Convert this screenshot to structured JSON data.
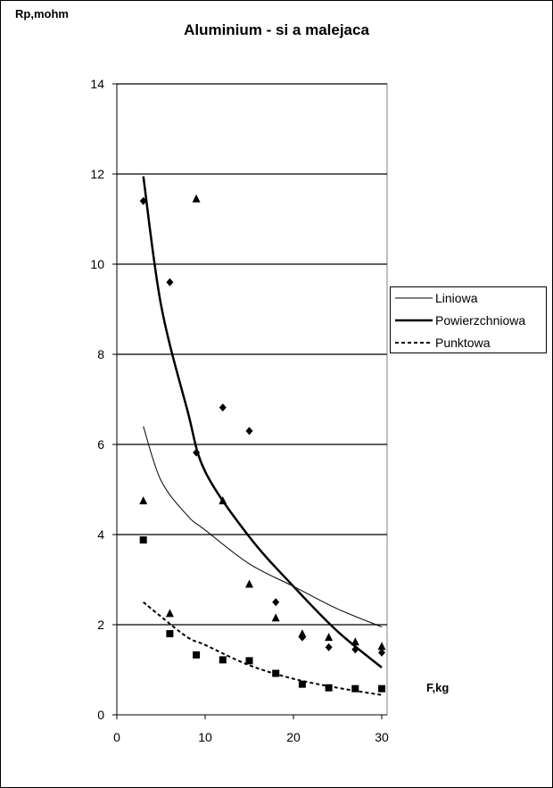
{
  "chart_data": {
    "type": "scatter",
    "title": "Aluminium - si a malejaca",
    "xlabel": "F,kg",
    "ylabel": "Rp,mohm",
    "xlim": [
      0,
      30
    ],
    "ylim": [
      0,
      14
    ],
    "x_ticks": [
      "0",
      "10",
      "20",
      "30"
    ],
    "y_ticks": [
      "0",
      "2",
      "4",
      "6",
      "8",
      "10",
      "12",
      "14"
    ],
    "grid": "horizontal",
    "legend_position": "right",
    "legend": [
      {
        "label": "Liniowa",
        "style": "thin-solid"
      },
      {
        "label": "Powierzchniowa",
        "style": "thick-solid"
      },
      {
        "label": "Punktowa",
        "style": "dashed"
      }
    ],
    "series": [
      {
        "name": "Liniowa",
        "marker": "triangle",
        "x": [
          3,
          6,
          9,
          12,
          15,
          18,
          21,
          24,
          27,
          30
        ],
        "y": [
          4.75,
          2.25,
          11.45,
          4.75,
          2.9,
          2.15,
          1.8,
          1.72,
          1.62,
          1.52
        ]
      },
      {
        "name": "Powierzchniowa",
        "marker": "diamond",
        "x": [
          3,
          6,
          9,
          12,
          15,
          18,
          21,
          24,
          27,
          30
        ],
        "y": [
          11.4,
          9.6,
          5.82,
          6.82,
          6.3,
          2.5,
          1.72,
          1.5,
          1.45,
          1.38
        ]
      },
      {
        "name": "Punktowa",
        "marker": "square",
        "x": [
          3,
          6,
          9,
          12,
          15,
          18,
          21,
          24,
          27,
          30
        ],
        "y": [
          3.88,
          1.8,
          1.33,
          1.22,
          1.2,
          0.92,
          0.68,
          0.6,
          0.58,
          0.58
        ]
      }
    ],
    "trendlines": [
      {
        "name": "Liniowa",
        "type": "power",
        "x": [
          3,
          5,
          8,
          10,
          15,
          20,
          25,
          30
        ],
        "y": [
          6.4,
          5.2,
          4.42,
          4.1,
          3.35,
          2.85,
          2.35,
          1.95
        ]
      },
      {
        "name": "Powierzchniowa",
        "type": "power",
        "x": [
          3,
          5,
          8,
          10,
          15,
          20,
          25,
          30
        ],
        "y": [
          11.95,
          9.1,
          6.75,
          5.4,
          3.95,
          2.85,
          1.85,
          1.05
        ]
      },
      {
        "name": "Punktowa",
        "type": "power",
        "x": [
          3,
          5,
          8,
          10,
          15,
          20,
          25,
          30
        ],
        "y": [
          2.5,
          2.18,
          1.72,
          1.55,
          1.1,
          0.8,
          0.6,
          0.44
        ]
      }
    ]
  },
  "colors": {
    "background": "#ffffff",
    "line": "#000000",
    "plot_border": "#808080"
  }
}
